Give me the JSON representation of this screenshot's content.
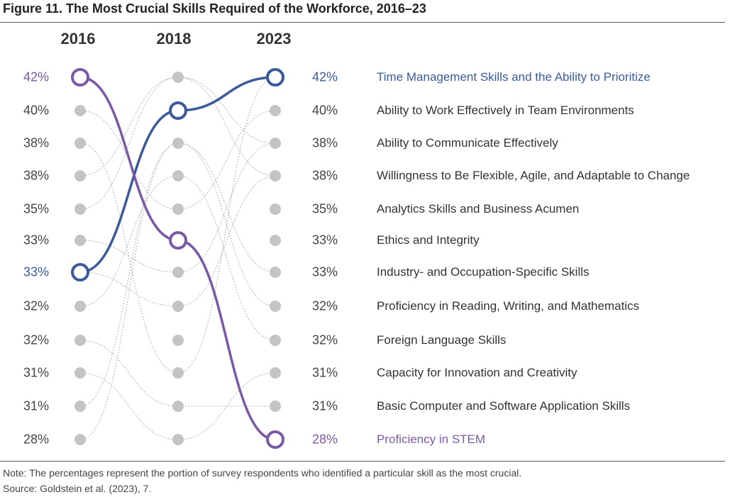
{
  "figure": {
    "title": "Figure 11. The Most Crucial Skills Required of the Workforce, 2016–23",
    "note": "Note: The percentages represent the portion of survey respondents who identified a particular skill as the most crucial.",
    "source": "Source: Goldstein et al. (2023), 7."
  },
  "colors": {
    "purple": "#7a5aa6",
    "blue": "#3c5a9a",
    "dot": "#c4c4c4",
    "connector": "#999999"
  },
  "chart_data": {
    "type": "bump",
    "years": [
      "2016",
      "2018",
      "2023"
    ],
    "left_values": [
      "42%",
      "40%",
      "38%",
      "38%",
      "35%",
      "33%",
      "33%",
      "32%",
      "32%",
      "31%",
      "31%",
      "28%"
    ],
    "right_values": [
      "42%",
      "40%",
      "38%",
      "38%",
      "35%",
      "33%",
      "33%",
      "32%",
      "32%",
      "31%",
      "31%",
      "28%"
    ],
    "skills": [
      "Time Management Skills and the Ability to Prioritize",
      "Ability to Work Effectively in Team Environments",
      "Ability to Communicate Effectively",
      "Willingness to Be Flexible, Agile, and Adaptable to Change",
      "Analytics Skills and Business Acumen",
      "Ethics and Integrity",
      "Industry- and Occupation-Specific Skills",
      "Proficiency in Reading, Writing, and Mathematics",
      "Foreign Language Skills",
      "Capacity for Innovation and Creativity",
      "Basic Computer and Software Application Skills",
      "Proficiency in STEM"
    ],
    "highlights": [
      {
        "skill": "Time Management Skills and the Ability to Prioritize",
        "ranks": [
          7,
          2,
          1
        ],
        "color": "blue"
      },
      {
        "skill": "Proficiency in STEM",
        "ranks": [
          1,
          6,
          12
        ],
        "color": "purple"
      }
    ],
    "connectors": [
      [
        2,
        5,
        2
      ],
      [
        3,
        10,
        1
      ],
      [
        4,
        1,
        3
      ],
      [
        5,
        1,
        4
      ],
      [
        6,
        7,
        3
      ],
      [
        7,
        8,
        4
      ],
      [
        8,
        4,
        9
      ],
      [
        9,
        11,
        11
      ],
      [
        10,
        12,
        10
      ],
      [
        11,
        3,
        7
      ],
      [
        12,
        3,
        8
      ]
    ]
  }
}
